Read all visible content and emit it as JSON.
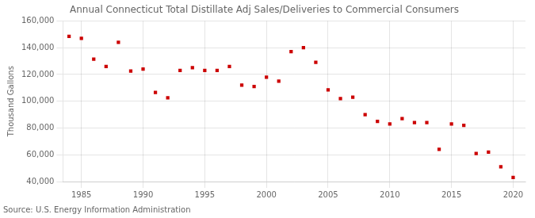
{
  "chart_data": {
    "type": "scatter",
    "title": "Annual Connecticut Total Distillate Adj Sales/Deliveries to Commercial Consumers",
    "ylabel": "Thousand Gallons",
    "annotation": "Source: U.S. Energy Information Administration",
    "x": [
      1984,
      1985,
      1986,
      1987,
      1988,
      1989,
      1990,
      1991,
      1992,
      1993,
      1994,
      1995,
      1996,
      1997,
      1998,
      1999,
      2000,
      2001,
      2002,
      2003,
      2004,
      2005,
      2006,
      2007,
      2008,
      2009,
      2010,
      2011,
      2012,
      2013,
      2014,
      2015,
      2016,
      2017,
      2018,
      2019,
      2020
    ],
    "values": [
      148500,
      147000,
      131500,
      126000,
      144000,
      122500,
      124000,
      106500,
      102500,
      123000,
      125000,
      123000,
      123000,
      126000,
      112000,
      111000,
      118000,
      115000,
      137000,
      140000,
      129000,
      108500,
      102000,
      103000,
      90000,
      85000,
      83000,
      87000,
      84000,
      84000,
      64000,
      83000,
      82000,
      61000,
      62000,
      51000,
      43000
    ],
    "color": "#cc0000",
    "marker": "square",
    "xlim": [
      1983.5,
      2021
    ],
    "xticks": [
      1985,
      1990,
      1995,
      2000,
      2005,
      2010,
      2015,
      2020
    ],
    "ylim": [
      40000,
      160000
    ],
    "yticks": [
      {
        "value": 40000,
        "label": "40,000"
      },
      {
        "value": 60000,
        "label": "60,000"
      },
      {
        "value": 80000,
        "label": "80,000"
      },
      {
        "value": 100000,
        "label": "100,000"
      },
      {
        "value": 120000,
        "label": "120,000"
      },
      {
        "value": 140000,
        "label": "140,000"
      },
      {
        "value": 160000,
        "label": "160,000"
      }
    ],
    "grid": true
  }
}
